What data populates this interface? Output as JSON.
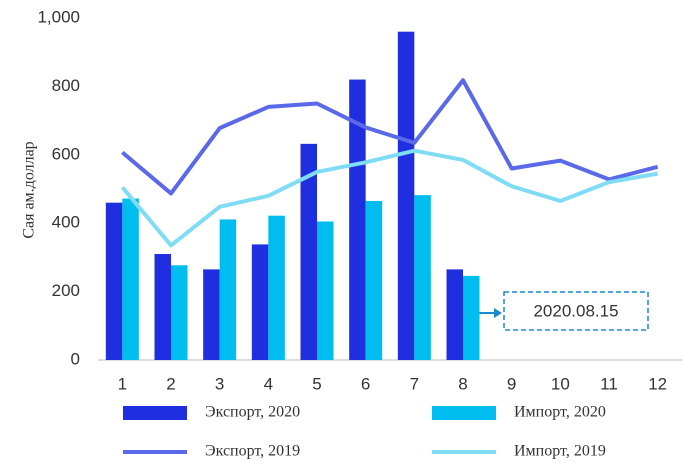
{
  "chart_data": {
    "type": "bar-line",
    "ylabel": "Сая ам.доллар",
    "categories": [
      "1",
      "2",
      "3",
      "4",
      "5",
      "6",
      "7",
      "8",
      "9",
      "10",
      "11",
      "12"
    ],
    "ylim": [
      0,
      1000
    ],
    "yticks": [
      0,
      200,
      400,
      600,
      800,
      {
        "value": 1000,
        "label": "1,000"
      }
    ],
    "series": [
      {
        "name": "Экспорт, 2020",
        "kind": "bar",
        "color": "#1f2fe0",
        "values": [
          460,
          310,
          265,
          338,
          632,
          820,
          960,
          265,
          null,
          null,
          null,
          null
        ]
      },
      {
        "name": "Импорт, 2020",
        "kind": "bar",
        "color": "#00bdf0",
        "values": [
          472,
          277,
          411,
          422,
          405,
          465,
          482,
          246,
          null,
          null,
          null,
          null
        ]
      },
      {
        "name": "Экспорт, 2019",
        "kind": "line",
        "color": "#5a68ea",
        "values": [
          607,
          487,
          678,
          740,
          750,
          680,
          635,
          818,
          560,
          583,
          528,
          565
        ]
      },
      {
        "name": "Импорт, 2019",
        "kind": "line",
        "color": "#80dcf5",
        "values": [
          505,
          335,
          448,
          480,
          550,
          578,
          612,
          585,
          508,
          465,
          520,
          545
        ]
      }
    ],
    "annotation": "2020.08.15"
  }
}
